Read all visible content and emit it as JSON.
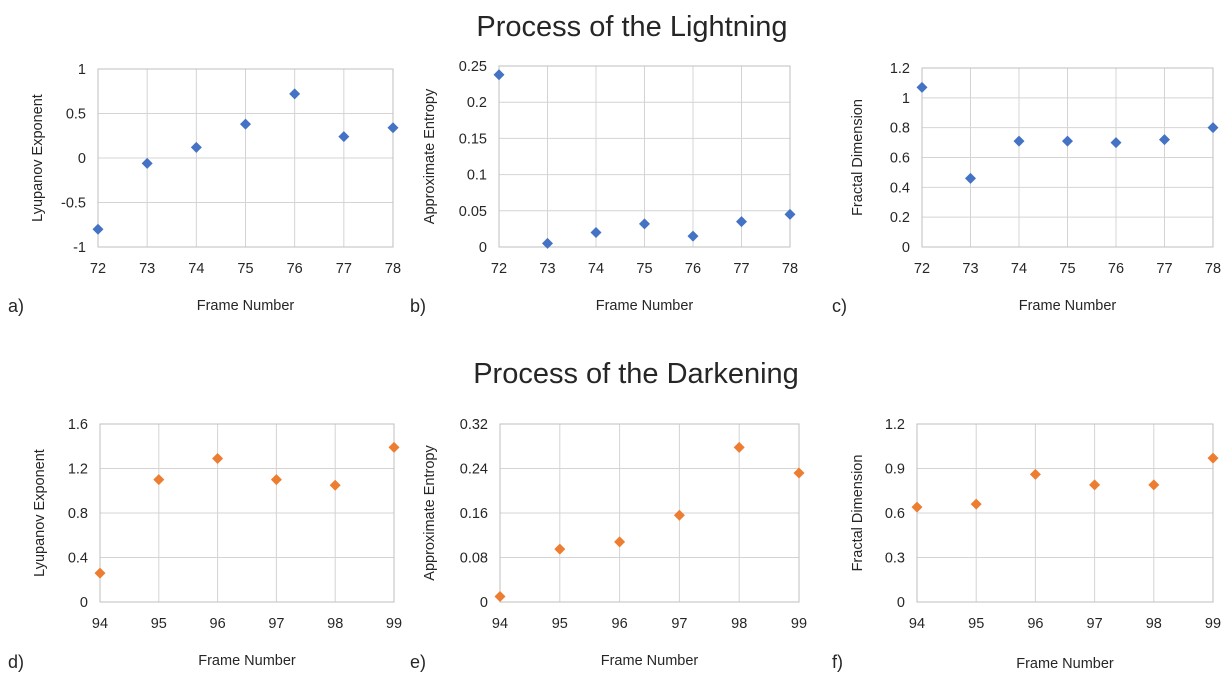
{
  "sections": [
    {
      "title": "Process of the Lightning"
    },
    {
      "title": "Process of the Darkening"
    }
  ],
  "colors": {
    "lightning": "#4472c4",
    "darkening": "#ed7d31",
    "grid": "#d4d4d4",
    "text": "#262626"
  },
  "chart_data": [
    {
      "type": "scatter",
      "panel_label": "a)",
      "xlabel": "Frame Number",
      "ylabel": "Lyupanov Exponent",
      "xlim": [
        72,
        78
      ],
      "xticks": [
        72,
        73,
        74,
        75,
        76,
        77,
        78
      ],
      "ylim": [
        -1,
        1
      ],
      "yticks": [
        -1,
        -0.5,
        0,
        0.5,
        1
      ],
      "ytick_labels": [
        "-1",
        "-0.5",
        "0",
        "0.5",
        "1"
      ],
      "grid": true,
      "color": "#4472c4",
      "points": [
        [
          72,
          -0.8
        ],
        [
          73,
          -0.06
        ],
        [
          74,
          0.12
        ],
        [
          75,
          0.38
        ],
        [
          76,
          0.72
        ],
        [
          77,
          0.24
        ],
        [
          78,
          0.34
        ]
      ]
    },
    {
      "type": "scatter",
      "panel_label": "b)",
      "xlabel": "Frame Number",
      "ylabel": "Approximate Entropy",
      "xlim": [
        72,
        78
      ],
      "xticks": [
        72,
        73,
        74,
        75,
        76,
        77,
        78
      ],
      "ylim": [
        0,
        0.25
      ],
      "yticks": [
        0,
        0.05,
        0.1,
        0.15,
        0.2,
        0.25
      ],
      "ytick_labels": [
        "0",
        "0.05",
        "0.1",
        "0.15",
        "0.2",
        "0.25"
      ],
      "grid": true,
      "color": "#4472c4",
      "points": [
        [
          72,
          0.238
        ],
        [
          73,
          0.005
        ],
        [
          74,
          0.02
        ],
        [
          75,
          0.032
        ],
        [
          76,
          0.015
        ],
        [
          77,
          0.035
        ],
        [
          78,
          0.045
        ]
      ]
    },
    {
      "type": "scatter",
      "panel_label": "c)",
      "xlabel": "Frame Number",
      "ylabel": "Fractal Dimension",
      "xlim": [
        72,
        78
      ],
      "xticks": [
        72,
        73,
        74,
        75,
        76,
        77,
        78
      ],
      "ylim": [
        0,
        1.2
      ],
      "yticks": [
        0,
        0.2,
        0.4,
        0.6,
        0.8,
        1,
        1.2
      ],
      "ytick_labels": [
        "0",
        "0.2",
        "0.4",
        "0.6",
        "0.8",
        "1",
        "1.2"
      ],
      "grid": true,
      "color": "#4472c4",
      "points": [
        [
          72,
          1.07
        ],
        [
          73,
          0.46
        ],
        [
          74,
          0.71
        ],
        [
          75,
          0.71
        ],
        [
          76,
          0.7
        ],
        [
          77,
          0.72
        ],
        [
          78,
          0.8
        ]
      ]
    },
    {
      "type": "scatter",
      "panel_label": "d)",
      "xlabel": "Frame Number",
      "ylabel": "Lyupanov Exponent",
      "xlim": [
        94,
        99
      ],
      "xticks": [
        94,
        95,
        96,
        97,
        98,
        99
      ],
      "ylim": [
        0,
        1.6
      ],
      "yticks": [
        0,
        0.4,
        0.8,
        1.2,
        1.6
      ],
      "ytick_labels": [
        "0",
        "0.4",
        "0.8",
        "1.2",
        "1.6"
      ],
      "grid": true,
      "color": "#ed7d31",
      "points": [
        [
          94,
          0.26
        ],
        [
          95,
          1.1
        ],
        [
          96,
          1.29
        ],
        [
          97,
          1.1
        ],
        [
          98,
          1.05
        ],
        [
          99,
          1.39
        ]
      ]
    },
    {
      "type": "scatter",
      "panel_label": "e)",
      "xlabel": "Frame Number",
      "ylabel": "Approximate Entropy",
      "xlim": [
        94,
        99
      ],
      "xticks": [
        94,
        95,
        96,
        97,
        98,
        99
      ],
      "ylim": [
        0,
        0.32
      ],
      "yticks": [
        0,
        0.08,
        0.16,
        0.24,
        0.32
      ],
      "ytick_labels": [
        "0",
        "0.08",
        "0.16",
        "0.24",
        "0.32"
      ],
      "grid": true,
      "color": "#ed7d31",
      "points": [
        [
          94,
          0.01
        ],
        [
          95,
          0.095
        ],
        [
          96,
          0.108
        ],
        [
          97,
          0.156
        ],
        [
          98,
          0.278
        ],
        [
          99,
          0.232
        ]
      ]
    },
    {
      "type": "scatter",
      "panel_label": "f)",
      "xlabel": "Frame Number",
      "ylabel": "Fractal Dimension",
      "xlim": [
        94,
        99
      ],
      "xticks": [
        94,
        95,
        96,
        97,
        98,
        99
      ],
      "ylim": [
        0,
        1.2
      ],
      "yticks": [
        0,
        0.3,
        0.6,
        0.9,
        1.2
      ],
      "ytick_labels": [
        "0",
        "0.3",
        "0.6",
        "0.9",
        "1.2"
      ],
      "grid": true,
      "color": "#ed7d31",
      "points": [
        [
          94,
          0.64
        ],
        [
          95,
          0.66
        ],
        [
          96,
          0.86
        ],
        [
          97,
          0.79
        ],
        [
          98,
          0.79
        ],
        [
          99,
          0.97
        ]
      ]
    }
  ]
}
